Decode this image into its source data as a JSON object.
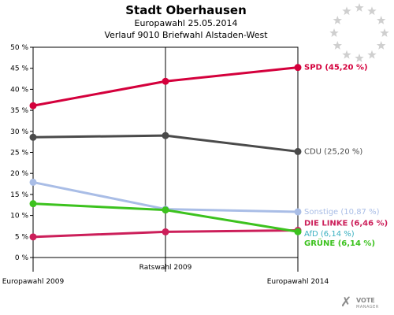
{
  "chart_data": {
    "type": "line",
    "title": "Stadt Oberhausen",
    "subtitle1": "Europawahl 25.05.2014",
    "subtitle2": "Verlauf 9010 Briefwahl Alstaden-West",
    "categories": [
      "Europawahl 2009",
      "Ratswahl 2009",
      "Europawahl 2014"
    ],
    "ylim": [
      0,
      50
    ],
    "yticks": [
      "0 %",
      "5 %",
      "10 %",
      "15 %",
      "20 %",
      "25 %",
      "30 %",
      "35 %",
      "40 %",
      "45 %",
      "50 %"
    ],
    "grid": false,
    "series": [
      {
        "name": "SPD",
        "label": "SPD (45,20 %)",
        "color": "#d4003c",
        "values": [
          36.1,
          41.9,
          45.2
        ]
      },
      {
        "name": "CDU",
        "label": "CDU (25,20 %)",
        "color": "#4a4a4a",
        "values": [
          28.6,
          29.0,
          25.2
        ]
      },
      {
        "name": "Sonstige",
        "label": "Sonstige (10,87 %)",
        "color": "#a9bde6",
        "values": [
          17.9,
          11.5,
          10.87
        ]
      },
      {
        "name": "DIE LINKE",
        "label": "DIE LINKE (6,46 %)",
        "color": "#cc1f5a",
        "values": [
          4.9,
          6.1,
          6.46
        ]
      },
      {
        "name": "AfD",
        "label": "AfD (6,14 %)",
        "color": "#3ab0c0",
        "values": [
          null,
          null,
          6.14
        ]
      },
      {
        "name": "GRÜNE",
        "label": "GRÜNE (6,14 %)",
        "color": "#3cc21e",
        "values": [
          12.8,
          11.3,
          6.14
        ]
      }
    ]
  },
  "watermark": {
    "name": "VOTE",
    "sub": "MANAGER"
  }
}
